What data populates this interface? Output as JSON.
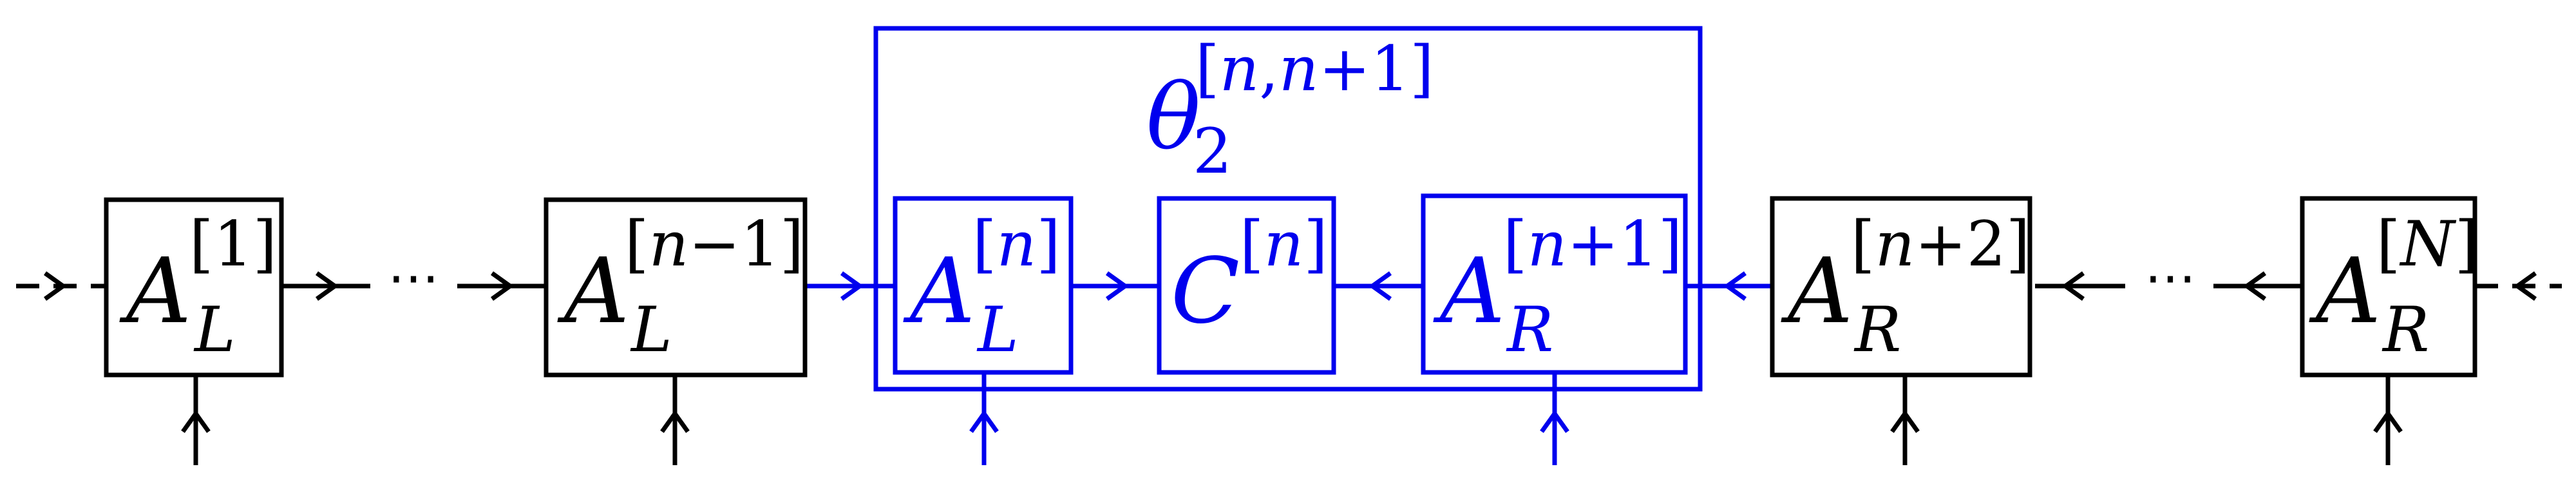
{
  "colors": {
    "black": "#000000",
    "blue": "#0000ee"
  },
  "dots_left": "⋯",
  "dots_right": "⋯",
  "nodes": {
    "a1": {
      "base": "A",
      "sub": "L",
      "sup_open": "[",
      "sup_body": "1",
      "sup_close": "]"
    },
    "anm1": {
      "base": "A",
      "sub": "L",
      "sup_open": "[",
      "sup_body": "n",
      "sup_op": "−",
      "sup_tail": "1",
      "sup_close": "]"
    },
    "an": {
      "base": "A",
      "sub": "L",
      "sup_open": "[",
      "sup_body": "n",
      "sup_close": "]"
    },
    "cn": {
      "base": "C",
      "sup_open": "[",
      "sup_body": "n",
      "sup_close": "]"
    },
    "anp1": {
      "base": "A",
      "sub": "R",
      "sup_open": "[",
      "sup_body": "n",
      "sup_op": "+",
      "sup_tail": "1",
      "sup_close": "]"
    },
    "anp2": {
      "base": "A",
      "sub": "R",
      "sup_open": "[",
      "sup_body": "n",
      "sup_op": "+",
      "sup_tail": "2",
      "sup_close": "]"
    },
    "aN": {
      "base": "A",
      "sub": "R",
      "sup_open": "[",
      "sup_body": "N",
      "sup_close": "]"
    }
  },
  "theta": {
    "base": "θ",
    "sub": "2",
    "sup_open": "[",
    "sup_a": "n",
    "sup_comma": ",",
    "sup_b": "n",
    "sup_op": "+",
    "sup_tail": "1",
    "sup_close": "]"
  }
}
